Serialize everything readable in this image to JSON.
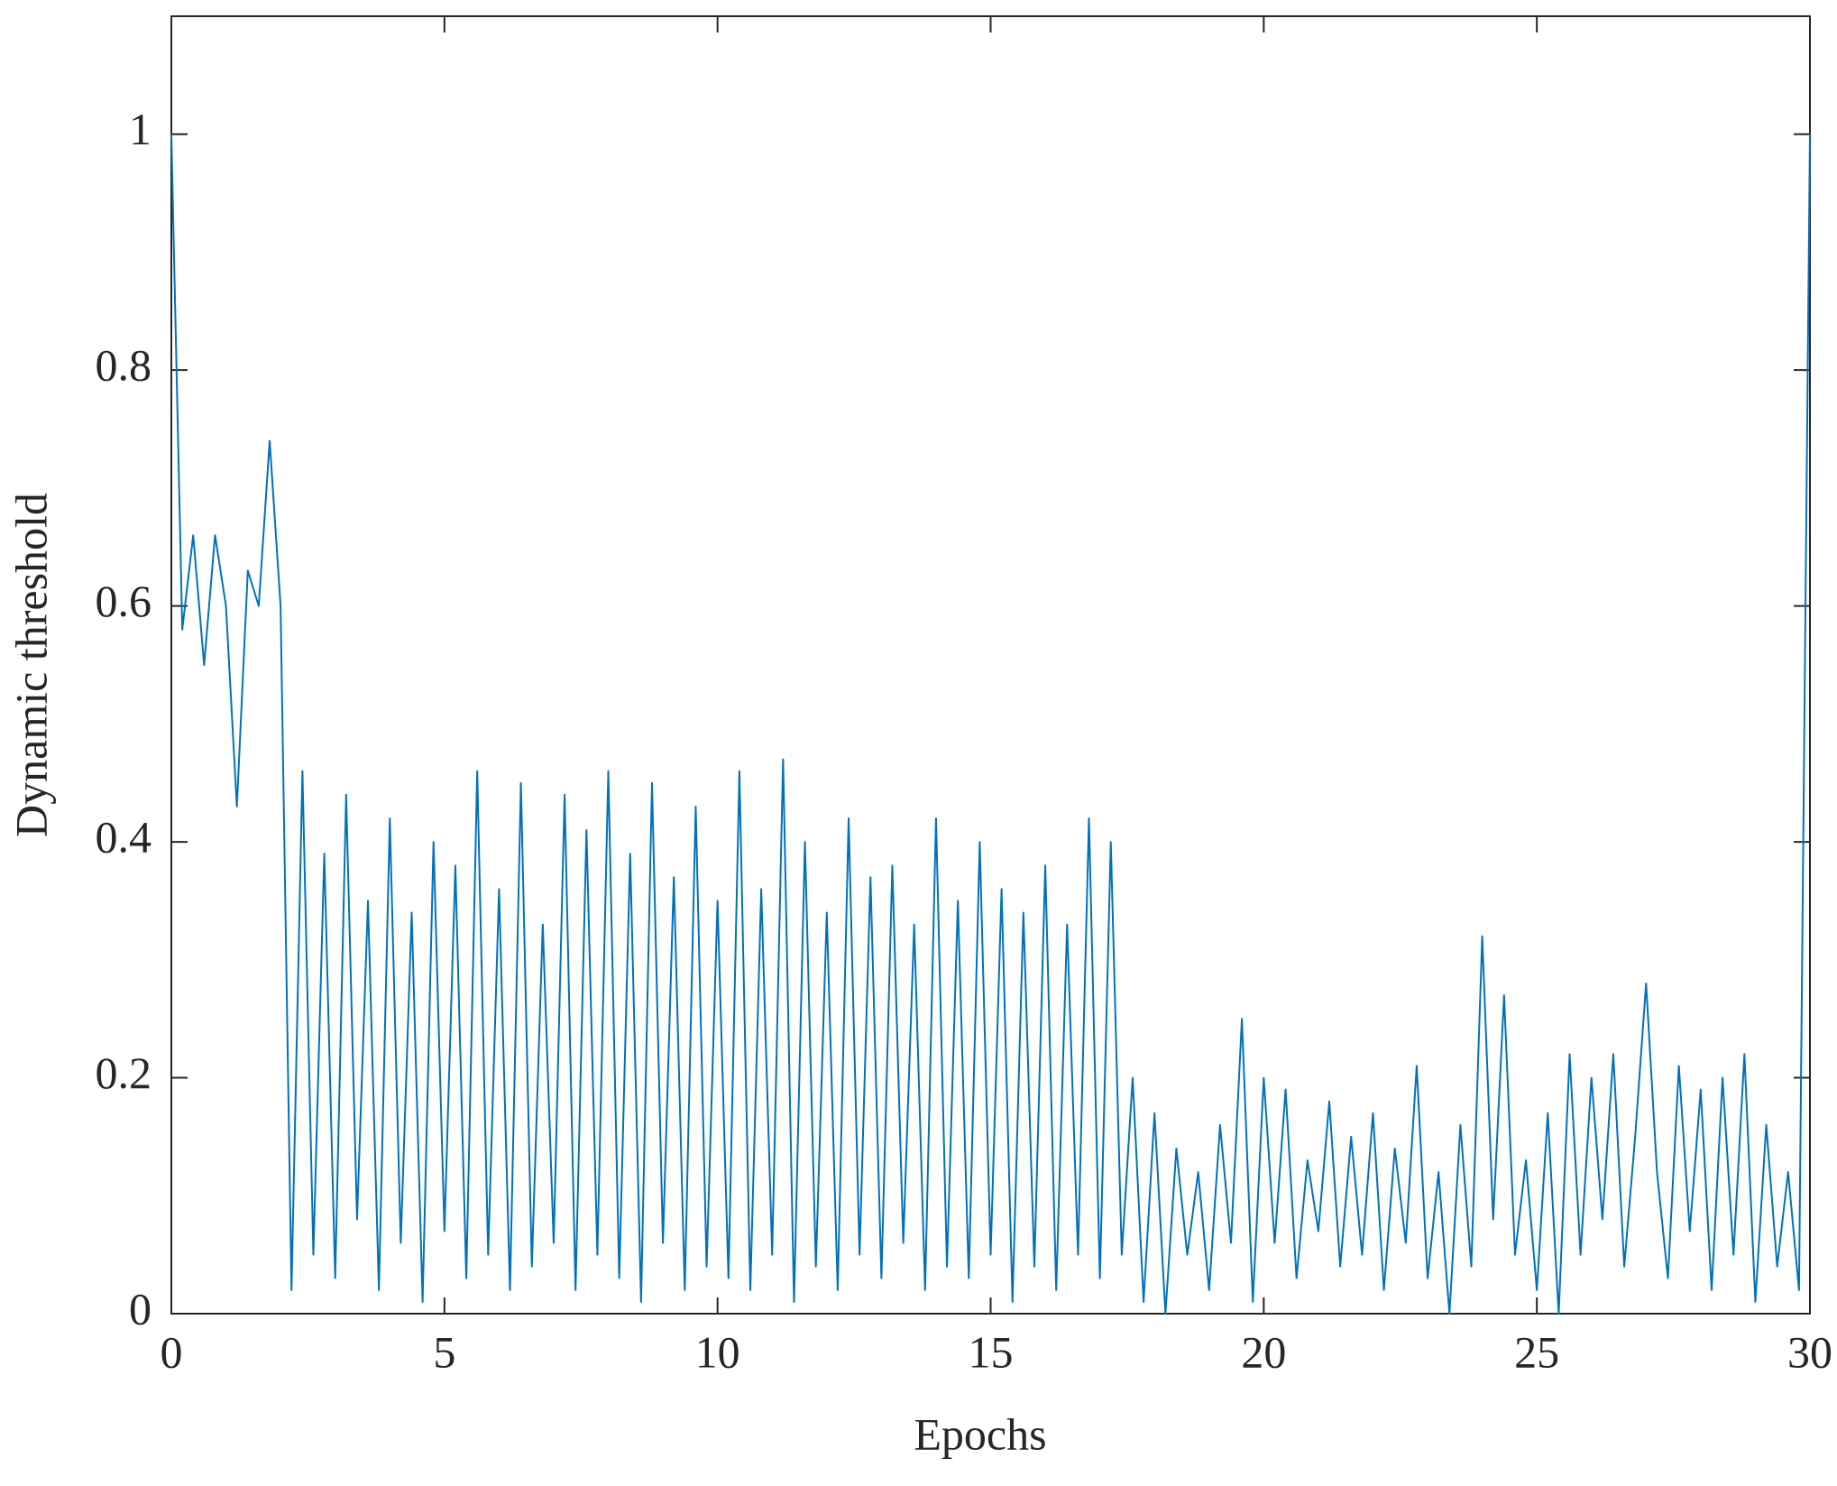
{
  "chart_data": {
    "type": "line",
    "x_label": "Epochs",
    "y_label": "Dynamic threshold",
    "xlim": [
      0,
      30
    ],
    "ylim": [
      0,
      1.1
    ],
    "xticks": [
      0,
      5,
      10,
      15,
      20,
      25,
      30
    ],
    "yticks": [
      0,
      0.2,
      0.4,
      0.6,
      0.8,
      1
    ],
    "x": [
      0,
      0.2,
      0.4,
      0.6,
      0.8,
      1.0,
      1.2,
      1.4,
      1.6,
      1.8,
      2.0,
      2.2,
      2.4,
      2.6,
      2.8,
      3.0,
      3.2,
      3.4,
      3.6,
      3.8,
      4.0,
      4.2,
      4.4,
      4.6,
      4.8,
      5.0,
      5.2,
      5.4,
      5.6,
      5.8,
      6.0,
      6.2,
      6.4,
      6.6,
      6.8,
      7.0,
      7.2,
      7.4,
      7.6,
      7.8,
      8.0,
      8.2,
      8.4,
      8.6,
      8.8,
      9.0,
      9.2,
      9.4,
      9.6,
      9.8,
      10.0,
      10.2,
      10.4,
      10.6,
      10.8,
      11.0,
      11.2,
      11.4,
      11.6,
      11.8,
      12.0,
      12.2,
      12.4,
      12.6,
      12.8,
      13.0,
      13.2,
      13.4,
      13.6,
      13.8,
      14.0,
      14.2,
      14.4,
      14.6,
      14.8,
      15.0,
      15.2,
      15.4,
      15.6,
      15.8,
      16.0,
      16.2,
      16.4,
      16.6,
      16.8,
      17.0,
      17.2,
      17.4,
      17.6,
      17.8,
      18.0,
      18.2,
      18.4,
      18.6,
      18.8,
      19.0,
      19.2,
      19.4,
      19.6,
      19.8,
      20.0,
      20.2,
      20.4,
      20.6,
      20.8,
      21.0,
      21.2,
      21.4,
      21.6,
      21.8,
      22.0,
      22.2,
      22.4,
      22.6,
      22.8,
      23.0,
      23.2,
      23.4,
      23.6,
      23.8,
      24.0,
      24.2,
      24.4,
      24.6,
      24.8,
      25.0,
      25.2,
      25.4,
      25.6,
      25.8,
      26.0,
      26.2,
      26.4,
      26.6,
      26.8,
      27.0,
      27.2,
      27.4,
      27.6,
      27.8,
      28.0,
      28.2,
      28.4,
      28.6,
      28.8,
      29.0,
      29.2,
      29.4,
      29.6,
      29.8,
      30.0
    ],
    "series": [
      {
        "color": "#0072bd",
        "values": [
          1.0,
          0.58,
          0.66,
          0.55,
          0.66,
          0.6,
          0.43,
          0.63,
          0.6,
          0.74,
          0.6,
          0.02,
          0.46,
          0.05,
          0.39,
          0.03,
          0.44,
          0.08,
          0.35,
          0.02,
          0.42,
          0.06,
          0.34,
          0.01,
          0.4,
          0.07,
          0.38,
          0.03,
          0.46,
          0.05,
          0.36,
          0.02,
          0.45,
          0.04,
          0.33,
          0.06,
          0.44,
          0.02,
          0.41,
          0.05,
          0.46,
          0.03,
          0.39,
          0.01,
          0.45,
          0.06,
          0.37,
          0.02,
          0.43,
          0.04,
          0.35,
          0.03,
          0.46,
          0.02,
          0.36,
          0.05,
          0.47,
          0.01,
          0.4,
          0.04,
          0.34,
          0.02,
          0.42,
          0.05,
          0.37,
          0.03,
          0.38,
          0.06,
          0.33,
          0.02,
          0.42,
          0.04,
          0.35,
          0.03,
          0.4,
          0.05,
          0.36,
          0.01,
          0.34,
          0.04,
          0.38,
          0.02,
          0.33,
          0.05,
          0.42,
          0.03,
          0.4,
          0.05,
          0.2,
          0.01,
          0.17,
          0.0,
          0.14,
          0.05,
          0.12,
          0.02,
          0.16,
          0.06,
          0.25,
          0.01,
          0.2,
          0.06,
          0.19,
          0.03,
          0.13,
          0.07,
          0.18,
          0.04,
          0.15,
          0.05,
          0.17,
          0.02,
          0.14,
          0.06,
          0.21,
          0.03,
          0.12,
          0.0,
          0.16,
          0.04,
          0.32,
          0.08,
          0.27,
          0.05,
          0.13,
          0.02,
          0.17,
          0.0,
          0.22,
          0.05,
          0.2,
          0.08,
          0.22,
          0.04,
          0.15,
          0.28,
          0.12,
          0.03,
          0.21,
          0.07,
          0.19,
          0.02,
          0.2,
          0.05,
          0.22,
          0.01,
          0.16,
          0.04,
          0.12,
          0.02,
          1.0
        ]
      }
    ]
  }
}
